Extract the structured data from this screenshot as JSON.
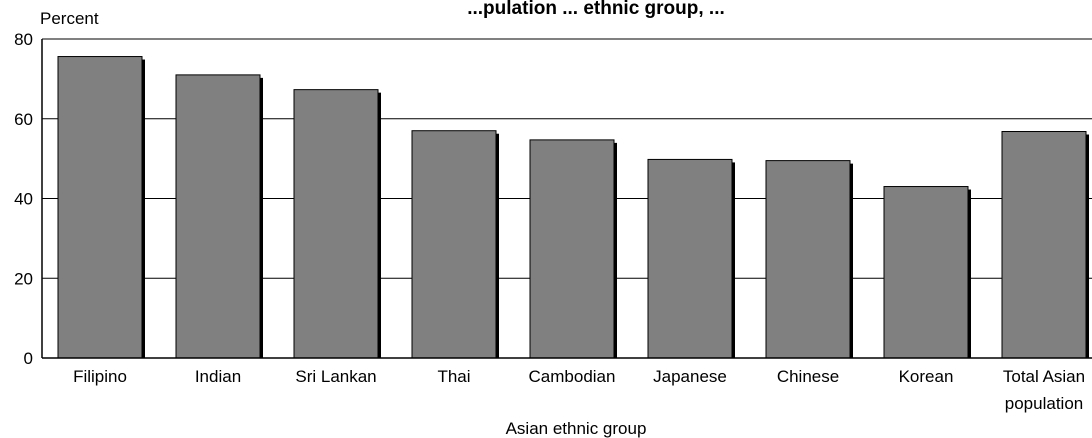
{
  "chart_data": {
    "type": "bar",
    "title": "...pulation ... ethnic group, ...",
    "ylabel": "Percent",
    "xlabel": "Asian ethnic group",
    "categories": [
      "Filipino",
      "Indian",
      "Sri Lankan",
      "Thai",
      "Cambodian",
      "Japanese",
      "Chinese",
      "Korean",
      "Total Asian population"
    ],
    "category_lines": [
      [
        "Filipino"
      ],
      [
        "Indian"
      ],
      [
        "Sri Lankan"
      ],
      [
        "Thai"
      ],
      [
        "Cambodian"
      ],
      [
        "Japanese"
      ],
      [
        "Chinese"
      ],
      [
        "Korean"
      ],
      [
        "Total Asian",
        "population"
      ]
    ],
    "values": [
      75.6,
      71.0,
      67.3,
      57.0,
      54.7,
      49.8,
      49.5,
      43.0,
      56.8
    ],
    "ylim": [
      0,
      80
    ],
    "yticks": [
      0,
      20,
      40,
      60,
      80
    ],
    "grid": true,
    "bar_color": "#808080",
    "shadow_color": "#000000"
  }
}
